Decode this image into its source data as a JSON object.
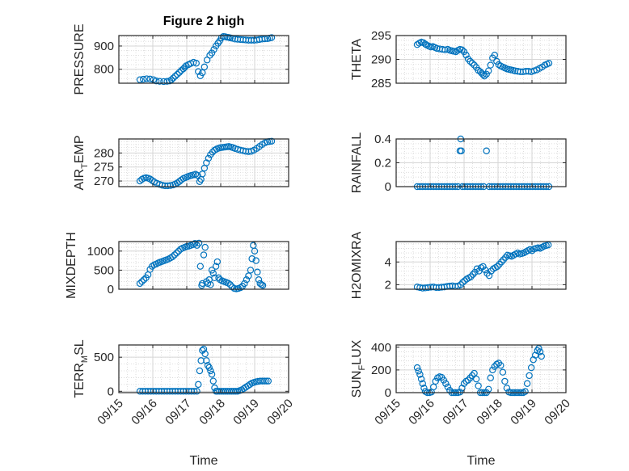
{
  "figure": {
    "title": "Figure 2 high"
  },
  "colors": {
    "marker": "#0072BD",
    "axis": "#262626",
    "grid": "#d6d6d6"
  },
  "x_axis": {
    "label": "Time",
    "range": [
      0,
      5
    ],
    "ticks": [
      0,
      1,
      2,
      3,
      4,
      5
    ],
    "tick_labels": [
      "09/15",
      "09/16",
      "09/17",
      "09/18",
      "09/19",
      "09/20"
    ]
  },
  "chart_data": [
    {
      "type": "scatter",
      "name": "pressure",
      "ylabel": "PRESSURE",
      "title": "Figure 2 high",
      "ylim": [
        740,
        945
      ],
      "yticks": [
        800,
        900
      ],
      "ytick_labels": [
        "800",
        "900"
      ],
      "x": [
        0.62,
        0.72,
        0.82,
        0.92,
        1.02,
        1.1,
        1.2,
        1.32,
        1.42,
        1.5,
        1.55,
        1.6,
        1.66,
        1.72,
        1.78,
        1.84,
        1.9,
        1.94,
        1.98,
        2.05,
        2.12,
        2.2,
        2.28,
        2.34,
        2.4,
        2.46,
        2.52,
        2.6,
        2.68,
        2.74,
        2.8,
        2.86,
        2.92,
        2.97,
        3.02,
        3.08,
        3.13,
        3.18,
        3.23,
        3.28,
        3.35,
        3.42,
        3.5,
        3.58,
        3.66,
        3.74,
        3.82,
        3.9,
        3.98,
        4.06,
        4.14,
        4.22,
        4.3,
        4.38,
        4.44,
        4.5
      ],
      "y": [
        755,
        757,
        759,
        758,
        755,
        750,
        748,
        747,
        748,
        750,
        755,
        762,
        770,
        778,
        786,
        795,
        802,
        808,
        815,
        820,
        825,
        830,
        826,
        790,
        772,
        785,
        810,
        840,
        860,
        870,
        885,
        900,
        912,
        922,
        935,
        941,
        940,
        938,
        937,
        935,
        933,
        930,
        929,
        928,
        927,
        926,
        925,
        925,
        925,
        926,
        928,
        930,
        931,
        932,
        934,
        936
      ]
    },
    {
      "type": "scatter",
      "name": "theta",
      "ylabel": "THETA",
      "title": "",
      "ylim": [
        285,
        295
      ],
      "yticks": [
        285,
        290,
        295
      ],
      "ytick_labels": [
        "285",
        "290",
        "295"
      ],
      "x": [
        0.62,
        0.68,
        0.74,
        0.8,
        0.86,
        0.9,
        0.96,
        1.02,
        1.08,
        1.14,
        1.2,
        1.28,
        1.36,
        1.44,
        1.52,
        1.58,
        1.64,
        1.7,
        1.76,
        1.82,
        1.88,
        1.94,
        2.0,
        2.06,
        2.12,
        2.18,
        2.24,
        2.3,
        2.36,
        2.42,
        2.48,
        2.52,
        2.56,
        2.6,
        2.66,
        2.72,
        2.78,
        2.84,
        2.9,
        2.96,
        3.02,
        3.08,
        3.14,
        3.2,
        3.26,
        3.32,
        3.38,
        3.44,
        3.5,
        3.58,
        3.66,
        3.74,
        3.82,
        3.9,
        3.98,
        4.06,
        4.14,
        4.22,
        4.3,
        4.38,
        4.44,
        4.5
      ],
      "y": [
        293.1,
        293.4,
        293.6,
        293.5,
        293.2,
        293.0,
        292.8,
        292.6,
        292.7,
        292.5,
        292.3,
        292.2,
        292.1,
        292.0,
        292.1,
        291.9,
        291.8,
        291.7,
        291.6,
        291.9,
        292.1,
        292.0,
        291.6,
        290.9,
        290.1,
        289.6,
        289.2,
        288.8,
        288.3,
        287.7,
        287.4,
        287.1,
        286.8,
        286.5,
        286.9,
        287.6,
        288.8,
        290.3,
        290.9,
        289.6,
        288.9,
        288.6,
        288.4,
        288.2,
        288.0,
        287.9,
        287.8,
        287.7,
        287.6,
        287.5,
        287.4,
        287.4,
        287.5,
        287.5,
        287.4,
        287.6,
        287.8,
        288.1,
        288.4,
        288.8,
        289.0,
        289.2
      ]
    },
    {
      "type": "scatter",
      "name": "air_temp",
      "ylabel": "AIR_TEMP",
      "title": "",
      "ylim": [
        268,
        285
      ],
      "yticks": [
        270,
        275,
        280
      ],
      "ytick_labels": [
        "270",
        "275",
        "280"
      ],
      "x": [
        0.62,
        0.68,
        0.74,
        0.8,
        0.86,
        0.92,
        0.98,
        1.04,
        1.12,
        1.2,
        1.28,
        1.36,
        1.44,
        1.52,
        1.6,
        1.66,
        1.72,
        1.78,
        1.84,
        1.9,
        1.96,
        2.02,
        2.08,
        2.14,
        2.2,
        2.26,
        2.32,
        2.38,
        2.42,
        2.46,
        2.52,
        2.58,
        2.64,
        2.7,
        2.76,
        2.82,
        2.88,
        2.94,
        3.0,
        3.06,
        3.12,
        3.18,
        3.24,
        3.3,
        3.36,
        3.42,
        3.5,
        3.58,
        3.66,
        3.74,
        3.82,
        3.9,
        3.98,
        4.06,
        4.14,
        4.22,
        4.3,
        4.38,
        4.44,
        4.5
      ],
      "y": [
        270.0,
        270.6,
        271.0,
        271.2,
        271.0,
        270.7,
        270.2,
        269.7,
        269.2,
        268.8,
        268.5,
        268.3,
        268.3,
        268.4,
        268.6,
        268.9,
        269.3,
        269.8,
        270.4,
        270.9,
        271.2,
        271.5,
        271.8,
        272.0,
        272.2,
        272.4,
        272.0,
        269.8,
        270.6,
        272.5,
        274.6,
        276.5,
        278.1,
        279.4,
        280.3,
        281.0,
        281.4,
        281.7,
        281.9,
        282.0,
        282.1,
        282.2,
        282.3,
        282.1,
        281.9,
        281.6,
        281.3,
        281.0,
        280.8,
        280.6,
        280.5,
        280.6,
        281.0,
        281.6,
        282.3,
        283.0,
        283.6,
        284.0,
        284.1,
        284.2
      ]
    },
    {
      "type": "scatter",
      "name": "rainfall",
      "ylabel": "RAINFALL",
      "title": "",
      "ylim": [
        0,
        0.4
      ],
      "yticks": [
        0,
        0.2,
        0.4
      ],
      "ytick_labels": [
        "0",
        "0.2",
        "0.4"
      ],
      "x": [
        0.62,
        0.7,
        0.78,
        0.86,
        0.94,
        1.02,
        1.1,
        1.18,
        1.26,
        1.34,
        1.42,
        1.5,
        1.58,
        1.66,
        1.74,
        1.82,
        1.88,
        1.9,
        1.92,
        1.95,
        2.02,
        2.1,
        2.18,
        2.26,
        2.34,
        2.42,
        2.5,
        2.58,
        2.66,
        2.74,
        2.82,
        2.9,
        2.98,
        3.06,
        3.14,
        3.22,
        3.3,
        3.38,
        3.46,
        3.54,
        3.62,
        3.7,
        3.78,
        3.86,
        3.94,
        4.02,
        4.1,
        4.18,
        4.26,
        4.34,
        4.42,
        4.5
      ],
      "y": [
        0,
        0,
        0,
        0,
        0,
        0,
        0,
        0,
        0,
        0,
        0,
        0,
        0,
        0,
        0,
        0,
        0.3,
        0.4,
        0.3,
        0,
        0,
        0,
        0,
        0,
        0,
        0,
        0,
        0,
        0.3,
        0,
        0,
        0,
        0,
        0,
        0,
        0,
        0,
        0,
        0,
        0,
        0,
        0,
        0,
        0,
        0,
        0,
        0,
        0,
        0,
        0,
        0,
        0
      ]
    },
    {
      "type": "scatter",
      "name": "mixdepth",
      "ylabel": "MIXDEPTH",
      "title": "",
      "ylim": [
        0,
        1250
      ],
      "yticks": [
        0,
        500,
        1000
      ],
      "ytick_labels": [
        "0",
        "500",
        "1000"
      ],
      "x": [
        0.62,
        0.68,
        0.74,
        0.8,
        0.86,
        0.92,
        0.98,
        1.04,
        1.1,
        1.16,
        1.22,
        1.28,
        1.34,
        1.4,
        1.46,
        1.52,
        1.58,
        1.64,
        1.7,
        1.76,
        1.82,
        1.88,
        1.94,
        2.0,
        2.06,
        2.12,
        2.18,
        2.24,
        2.3,
        2.36,
        2.4,
        2.44,
        2.46,
        2.5,
        2.54,
        2.58,
        2.62,
        2.66,
        2.7,
        2.74,
        2.78,
        2.82,
        2.86,
        2.9,
        2.94,
        2.98,
        3.04,
        3.1,
        3.16,
        3.22,
        3.28,
        3.34,
        3.4,
        3.46,
        3.52,
        3.58,
        3.64,
        3.7,
        3.76,
        3.82,
        3.88,
        3.92,
        3.96,
        4.0,
        4.04,
        4.08,
        4.12,
        4.16,
        4.2,
        4.24
      ],
      "y": [
        150,
        200,
        250,
        300,
        380,
        520,
        600,
        640,
        660,
        690,
        710,
        730,
        750,
        770,
        790,
        820,
        850,
        900,
        950,
        1000,
        1050,
        1080,
        1100,
        1120,
        1130,
        1150,
        1170,
        1200,
        1150,
        1210,
        600,
        100,
        150,
        900,
        1100,
        200,
        150,
        250,
        120,
        500,
        420,
        300,
        600,
        720,
        300,
        250,
        220,
        200,
        180,
        160,
        120,
        60,
        20,
        10,
        20,
        40,
        80,
        150,
        250,
        350,
        500,
        800,
        1150,
        1000,
        750,
        450,
        250,
        150,
        120,
        100
      ]
    },
    {
      "type": "scatter",
      "name": "h2omixra",
      "ylabel": "H2OMIXRA",
      "title": "",
      "ylim": [
        1.6,
        5.8
      ],
      "yticks": [
        2,
        4
      ],
      "ytick_labels": [
        "2",
        "4"
      ],
      "x": [
        0.62,
        0.7,
        0.78,
        0.86,
        0.94,
        1.02,
        1.1,
        1.18,
        1.26,
        1.34,
        1.42,
        1.5,
        1.58,
        1.66,
        1.74,
        1.82,
        1.9,
        1.96,
        2.02,
        2.08,
        2.14,
        2.2,
        2.26,
        2.32,
        2.38,
        2.44,
        2.5,
        2.56,
        2.62,
        2.68,
        2.74,
        2.8,
        2.86,
        2.92,
        2.98,
        3.04,
        3.1,
        3.16,
        3.22,
        3.28,
        3.34,
        3.4,
        3.46,
        3.52,
        3.58,
        3.64,
        3.7,
        3.76,
        3.82,
        3.88,
        3.94,
        4.0,
        4.06,
        4.12,
        4.18,
        4.24,
        4.3,
        4.36,
        4.42,
        4.48
      ],
      "y": [
        1.8,
        1.75,
        1.7,
        1.72,
        1.75,
        1.78,
        1.8,
        1.75,
        1.75,
        1.78,
        1.8,
        1.85,
        1.88,
        1.9,
        1.85,
        1.88,
        2.0,
        2.2,
        2.35,
        2.5,
        2.6,
        2.7,
        2.9,
        3.1,
        3.4,
        3.2,
        3.5,
        3.6,
        3.3,
        3.0,
        2.8,
        3.2,
        3.4,
        3.5,
        3.6,
        3.8,
        4.0,
        4.2,
        4.4,
        4.6,
        4.55,
        4.5,
        4.6,
        4.7,
        4.8,
        4.7,
        4.75,
        4.8,
        4.9,
        5.0,
        5.1,
        5.0,
        5.15,
        5.2,
        5.25,
        5.2,
        5.3,
        5.4,
        5.45,
        5.5
      ]
    },
    {
      "type": "scatter",
      "name": "terr_msl",
      "ylabel": "TERR_MSL",
      "title": "",
      "ylim": [
        -20,
        680
      ],
      "yticks": [
        0,
        500
      ],
      "ytick_labels": [
        "0",
        "500"
      ],
      "x": [
        0.62,
        0.7,
        0.78,
        0.86,
        0.94,
        1.02,
        1.1,
        1.18,
        1.26,
        1.34,
        1.42,
        1.5,
        1.58,
        1.66,
        1.74,
        1.82,
        1.9,
        1.98,
        2.06,
        2.14,
        2.22,
        2.3,
        2.34,
        2.38,
        2.42,
        2.46,
        2.5,
        2.54,
        2.58,
        2.62,
        2.66,
        2.7,
        2.74,
        2.78,
        2.82,
        2.86,
        2.9,
        2.96,
        3.02,
        3.08,
        3.14,
        3.2,
        3.26,
        3.32,
        3.38,
        3.44,
        3.5,
        3.56,
        3.62,
        3.68,
        3.74,
        3.8,
        3.86,
        3.92,
        3.98,
        4.04,
        4.1,
        4.16,
        4.22,
        4.28,
        4.34,
        4.4
      ],
      "y": [
        0,
        0,
        0,
        0,
        0,
        0,
        0,
        0,
        0,
        0,
        0,
        0,
        0,
        0,
        0,
        0,
        0,
        0,
        0,
        0,
        0,
        0,
        100,
        300,
        450,
        600,
        620,
        550,
        450,
        380,
        350,
        300,
        250,
        150,
        50,
        0,
        0,
        0,
        0,
        0,
        0,
        0,
        0,
        0,
        0,
        0,
        0,
        10,
        20,
        40,
        60,
        80,
        100,
        120,
        130,
        140,
        145,
        150,
        150,
        150,
        150,
        150
      ]
    },
    {
      "type": "scatter",
      "name": "sun_flux",
      "ylabel": "SUN_FLUX",
      "title": "",
      "ylim": [
        0,
        420
      ],
      "yticks": [
        0,
        200,
        400
      ],
      "ytick_labels": [
        "0",
        "200",
        "400"
      ],
      "x": [
        0.62,
        0.66,
        0.7,
        0.74,
        0.78,
        0.82,
        0.86,
        0.92,
        0.98,
        1.04,
        1.1,
        1.16,
        1.22,
        1.28,
        1.34,
        1.4,
        1.46,
        1.52,
        1.58,
        1.64,
        1.7,
        1.76,
        1.82,
        1.88,
        1.94,
        2.0,
        2.06,
        2.12,
        2.18,
        2.24,
        2.3,
        2.36,
        2.42,
        2.48,
        2.54,
        2.6,
        2.66,
        2.72,
        2.78,
        2.84,
        2.9,
        2.96,
        3.02,
        3.08,
        3.14,
        3.2,
        3.26,
        3.32,
        3.38,
        3.44,
        3.5,
        3.56,
        3.62,
        3.68,
        3.74,
        3.8,
        3.86,
        3.92,
        3.98,
        4.04,
        4.1,
        4.16,
        4.2,
        4.24,
        4.28
      ],
      "y": [
        220,
        190,
        160,
        120,
        80,
        40,
        10,
        0,
        0,
        5,
        50,
        100,
        130,
        140,
        135,
        110,
        80,
        50,
        20,
        0,
        0,
        0,
        0,
        5,
        40,
        80,
        100,
        110,
        130,
        150,
        170,
        120,
        60,
        0,
        0,
        0,
        0,
        30,
        130,
        200,
        230,
        250,
        260,
        240,
        180,
        100,
        40,
        5,
        0,
        0,
        0,
        0,
        0,
        0,
        0,
        10,
        80,
        150,
        220,
        290,
        330,
        370,
        390,
        360,
        320
      ]
    }
  ]
}
